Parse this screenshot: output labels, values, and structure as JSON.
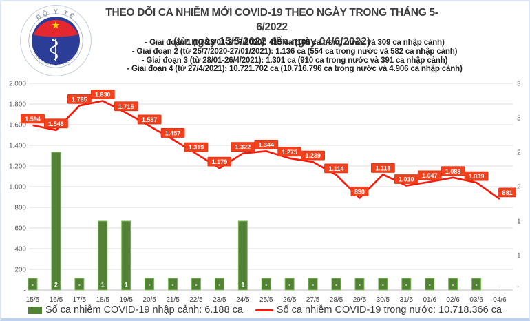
{
  "logo": {
    "top_text": "BỘ Y TẾ",
    "bottom_text": "MINISTRY OF HEALTH"
  },
  "header": {
    "title": "THEO DÕI CA NHIỄM MỚI COVID-19 THEO NGÀY TRONG THÁNG 5-6/2022",
    "subtitle": "(từ ngày 15/5/2022 đến ngày 04/6/2022)",
    "periods": [
      "- Giai đoạn 1 (từ 23/01-24/7/2020): 415 ca (106 ca trong nước và 309 ca nhập cảnh)",
      "- Giai đoạn 2 (từ 25/7/2020-27/01/2021): 1.136 ca (554 ca trong nước và 582 ca nhập cảnh)",
      "- Giai đoạn 3 (từ 28/01-26/4/2021): 1.301 ca (910 ca trong nước và 391 ca nhập cảnh)",
      "- Giai đoạn 4 (từ 27/4/2021): 10.721.702 ca (10.716.796 ca trong nước và 4.906 ca nhập cảnh)"
    ]
  },
  "chart_data": {
    "type": "combo-line-bar",
    "title": "THEO DÕI CA NHIỄM MỚI COVID-19 THEO NGÀY TRONG THÁNG 5-6/2022",
    "categories": [
      "15/5",
      "16/5",
      "17/5",
      "18/5",
      "19/5",
      "20/5",
      "21/5",
      "22/5",
      "23/5",
      "24/5",
      "25/5",
      "26/5",
      "27/5",
      "28/5",
      "29/5",
      "30/5",
      "31/5",
      "01/6",
      "02/6",
      "03/6",
      "04/6"
    ],
    "series": [
      {
        "name": "Số ca nhiễm COVID-19 trong nước",
        "type": "line",
        "axis": "left",
        "values": [
          1594,
          1548,
          1785,
          1830,
          1715,
          1587,
          1457,
          1319,
          1179,
          1322,
          1344,
          1275,
          1239,
          1114,
          890,
          1118,
          1010,
          1047,
          1088,
          1039,
          881
        ],
        "labels": [
          "1.594",
          "1.548",
          "1.785",
          "1.830",
          "1.715",
          "1.587",
          "1.457",
          "1.319",
          "1.179",
          "1.322",
          "1.344",
          "1.275",
          "1.239",
          "1.114",
          "890",
          "1.118",
          "1.010",
          "1.047",
          "1.088",
          "1.039",
          "881"
        ]
      },
      {
        "name": "Số ca nhiễm COVID-19 nhập cảnh",
        "type": "bar",
        "axis": "right",
        "values": [
          0,
          2,
          0,
          1,
          1,
          0,
          0,
          0,
          0,
          1,
          0,
          0,
          0,
          0,
          0,
          0,
          0,
          0,
          0,
          0,
          0
        ],
        "labels": [
          "-",
          "2",
          "-",
          "1",
          "1",
          "-",
          "-",
          "-",
          "-",
          "1",
          "-",
          "-",
          "-",
          "-",
          "-",
          "-",
          "-",
          "-",
          "-",
          "-",
          "-"
        ]
      }
    ],
    "left_axis": {
      "min": 0,
      "max": 2000,
      "tick_labels": [
        "2.000",
        "1.800",
        "1.600",
        "1.400",
        "1.200",
        "1.000",
        "800",
        "600",
        "400",
        "200",
        "-"
      ]
    },
    "right_axis": {
      "min": 0,
      "max": 3,
      "tick_labels": [
        "3",
        "3",
        "2",
        "2",
        "1",
        "1",
        "-"
      ]
    },
    "grid": true,
    "legend_position": "bottom"
  },
  "legend": {
    "imported": "Số ca nhiễm COVID-19 nhập cảnh: 6.188 ca",
    "domestic": "Số ca nhiễm COVID-19 trong nước: 10.718.366 ca"
  },
  "colors": {
    "line": "#fe1508",
    "point_label_bg": "#f2411c",
    "point_label_border": "#dd3312",
    "bar": "#538135",
    "bar_edge": "#78bd52",
    "grid": "#dcdcdc",
    "axis_line": "#bfbfbf",
    "axis_text": "#595959",
    "x_text": "#404040",
    "zero_dash": "#8c8c8c",
    "logo_red": "#e5282f",
    "logo_blue": "#2b3d96",
    "logo_star": "#ffd400",
    "logo_ring": "#96a3b4"
  }
}
